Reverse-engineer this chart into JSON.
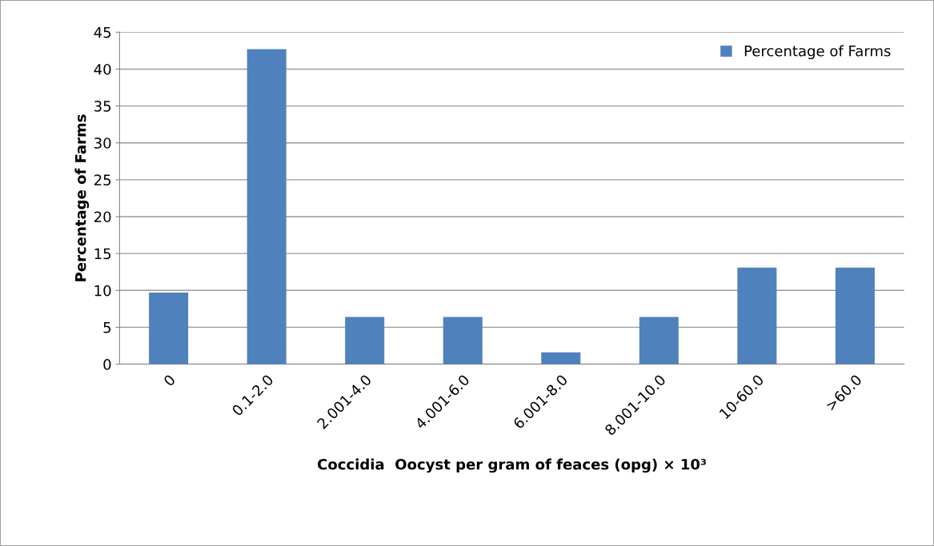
{
  "chart_data": {
    "type": "bar",
    "categories": [
      "0",
      "0.1-2.0",
      "2.001-4.0",
      "4.001-6.0",
      "6.001-8.0",
      "8.001-10.0",
      "10-60.0",
      ">60.0"
    ],
    "series": [
      {
        "name": "Percentage of Farms",
        "color": "#4f81bd",
        "values": [
          9.7,
          42.7,
          6.4,
          6.4,
          1.6,
          6.4,
          13.1,
          13.1
        ]
      }
    ],
    "xlabel": "Coccidia  Oocyst per gram of feaces (opg) × 10³",
    "ylabel": "Percentage of Farms",
    "ylim": [
      0,
      45
    ],
    "yticks": [
      0,
      5,
      10,
      15,
      20,
      25,
      30,
      35,
      40,
      45
    ],
    "grid": "y",
    "legend": "top right"
  }
}
